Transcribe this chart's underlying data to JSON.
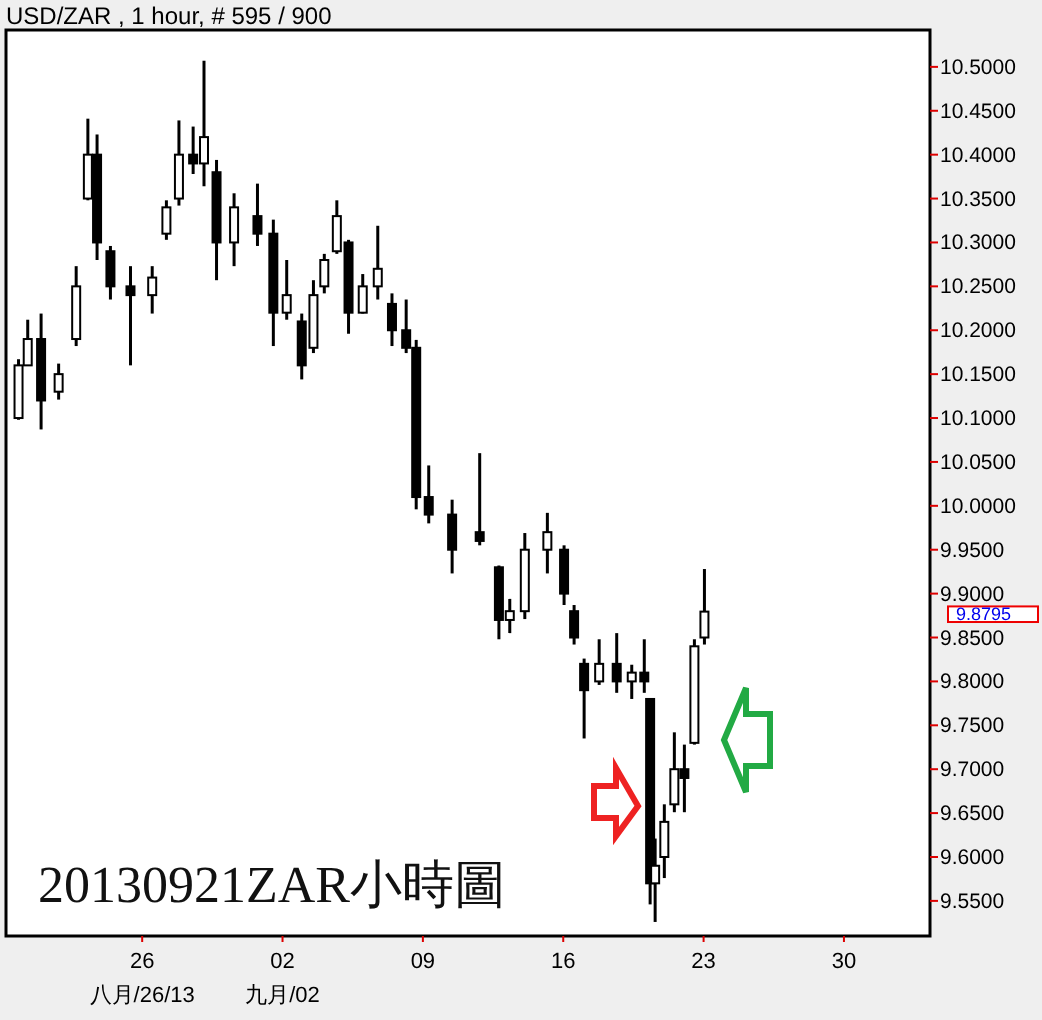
{
  "chart_data": {
    "type": "candlestick",
    "title": "USD/ZAR , 1 hour, # 595 / 900",
    "color": "#000000",
    "x": [
      "2013-08-19T20:00",
      "2013-08-20T07:00",
      "2013-08-20T23:00",
      "2013-08-21T20:00",
      "2013-08-22T17:00",
      "2013-08-23T07:00",
      "2013-08-23T18:00",
      "2013-08-24T10:00",
      "2013-08-25T10:00",
      "2013-08-26T12:00",
      "2013-08-27T05:00",
      "2013-08-27T20:00",
      "2013-08-28T13:00",
      "2013-08-29T02:00",
      "2013-08-29T17:00",
      "2013-08-30T14:00",
      "2013-08-31T18:00",
      "2013-09-01T13:00",
      "2013-09-02T05:00",
      "2013-09-02T23:00",
      "2013-09-03T13:00",
      "2013-09-04T02:00",
      "2013-09-04T17:00",
      "2013-09-05T07:00",
      "2013-09-06T00:00",
      "2013-09-06T18:00",
      "2013-09-07T11:00",
      "2013-09-08T04:00",
      "2013-09-08T16:00",
      "2013-09-09T07:00",
      "2013-09-10T11:00",
      "2013-09-11T20:00",
      "2013-09-12T19:00",
      "2013-09-13T08:00",
      "2013-09-14T02:00",
      "2013-09-15T05:00",
      "2013-09-16T01:00",
      "2013-09-16T13:00",
      "2013-09-17T01:00",
      "2013-09-17T19:00",
      "2013-09-18T16:00",
      "2013-09-19T10:00",
      "2013-09-20T01:00",
      "2013-09-20T08:00",
      "2013-09-20T14:00",
      "2013-09-21T01:00",
      "2013-09-21T13:00",
      "2013-09-22T01:00",
      "2013-09-22T13:00",
      "2013-09-23T01:00"
    ],
    "ohlc": [
      [
        10.1,
        10.167,
        10.098,
        10.16
      ],
      [
        10.16,
        10.212,
        10.16,
        10.19
      ],
      [
        10.19,
        10.219,
        10.087,
        10.12
      ],
      [
        10.13,
        10.162,
        10.121,
        10.15
      ],
      [
        10.19,
        10.273,
        10.182,
        10.25
      ],
      [
        10.35,
        10.441,
        10.348,
        10.4
      ],
      [
        10.4,
        10.423,
        10.28,
        10.3
      ],
      [
        10.29,
        10.296,
        10.235,
        10.25
      ],
      [
        10.25,
        10.273,
        10.16,
        10.24
      ],
      [
        10.24,
        10.273,
        10.219,
        10.26
      ],
      [
        10.31,
        10.348,
        10.303,
        10.34
      ],
      [
        10.35,
        10.439,
        10.342,
        10.4
      ],
      [
        10.4,
        10.432,
        10.378,
        10.39
      ],
      [
        10.39,
        10.507,
        10.364,
        10.42
      ],
      [
        10.38,
        10.394,
        10.257,
        10.3
      ],
      [
        10.3,
        10.356,
        10.273,
        10.34
      ],
      [
        10.33,
        10.367,
        10.296,
        10.31
      ],
      [
        10.31,
        10.326,
        10.182,
        10.22
      ],
      [
        10.22,
        10.28,
        10.212,
        10.24
      ],
      [
        10.21,
        10.219,
        10.144,
        10.16
      ],
      [
        10.18,
        10.257,
        10.174,
        10.24
      ],
      [
        10.25,
        10.287,
        10.242,
        10.28
      ],
      [
        10.29,
        10.348,
        10.287,
        10.33
      ],
      [
        10.3,
        10.303,
        10.196,
        10.22
      ],
      [
        10.22,
        10.264,
        10.219,
        10.25
      ],
      [
        10.25,
        10.319,
        10.235,
        10.27
      ],
      [
        10.23,
        10.242,
        10.182,
        10.2
      ],
      [
        10.2,
        10.235,
        10.174,
        10.18
      ],
      [
        10.18,
        10.189,
        9.996,
        10.01
      ],
      [
        10.01,
        10.046,
        9.98,
        9.99
      ],
      [
        9.99,
        10.007,
        9.923,
        9.95
      ],
      [
        9.97,
        10.06,
        9.955,
        9.96
      ],
      [
        9.93,
        9.932,
        9.848,
        9.87
      ],
      [
        9.87,
        9.894,
        9.855,
        9.88
      ],
      [
        9.88,
        9.969,
        9.871,
        9.95
      ],
      [
        9.95,
        9.992,
        9.923,
        9.97
      ],
      [
        9.95,
        9.955,
        9.887,
        9.9
      ],
      [
        9.88,
        9.887,
        9.842,
        9.85
      ],
      [
        9.82,
        9.826,
        9.735,
        9.79
      ],
      [
        9.8,
        9.848,
        9.796,
        9.82
      ],
      [
        9.82,
        9.855,
        9.787,
        9.8
      ],
      [
        9.8,
        9.819,
        9.78,
        9.81
      ],
      [
        9.81,
        9.848,
        9.787,
        9.8
      ],
      [
        9.78,
        9.78,
        9.546,
        9.57
      ],
      [
        9.57,
        9.621,
        9.526,
        9.59
      ],
      [
        9.6,
        9.66,
        9.576,
        9.64
      ],
      [
        9.66,
        9.742,
        9.651,
        9.7
      ],
      [
        9.7,
        9.728,
        9.651,
        9.69
      ],
      [
        9.73,
        9.848,
        9.728,
        9.84
      ],
      [
        9.85,
        9.928,
        9.842,
        9.8795
      ]
    ],
    "xlim": [
      "2013-08-19T05:00",
      "2013-10-04T07:00"
    ],
    "xticks": [
      {
        "value": "2013-08-26",
        "label": "26\n八月/26/13"
      },
      {
        "value": "2013-09-02",
        "label": "02\n九月/02"
      },
      {
        "value": "2013-09-09",
        "label": "09"
      },
      {
        "value": "2013-09-16",
        "label": "16"
      },
      {
        "value": "2013-09-23",
        "label": "23"
      },
      {
        "value": "2013-09-30",
        "label": "30"
      }
    ],
    "ylim": [
      9.51,
      10.542
    ],
    "yticks": [
      {
        "value": 9.55,
        "label": "9.5500"
      },
      {
        "value": 9.6,
        "label": "9.6000"
      },
      {
        "value": 9.65,
        "label": "9.6500"
      },
      {
        "value": 9.7,
        "label": "9.7000"
      },
      {
        "value": 9.75,
        "label": "9.7500"
      },
      {
        "value": 9.8,
        "label": "9.8000"
      },
      {
        "value": 9.85,
        "label": "9.8500"
      },
      {
        "value": 9.9,
        "label": "9.9000"
      },
      {
        "value": 9.95,
        "label": "9.9500"
      },
      {
        "value": 10.0,
        "label": "10.0000"
      },
      {
        "value": 10.05,
        "label": "10.0500"
      },
      {
        "value": 10.1,
        "label": "10.1000"
      },
      {
        "value": 10.15,
        "label": "10.1500"
      },
      {
        "value": 10.2,
        "label": "10.2000"
      },
      {
        "value": 10.25,
        "label": "10.2500"
      },
      {
        "value": 10.3,
        "label": "10.3000"
      },
      {
        "value": 10.35,
        "label": "10.3500"
      },
      {
        "value": 10.4,
        "label": "10.4000"
      },
      {
        "value": 10.45,
        "label": "10.4500"
      },
      {
        "value": 10.5,
        "label": "10.5000"
      }
    ],
    "annotations": [
      "20130921ZAR小時圖",
      "9.8795"
    ]
  }
}
